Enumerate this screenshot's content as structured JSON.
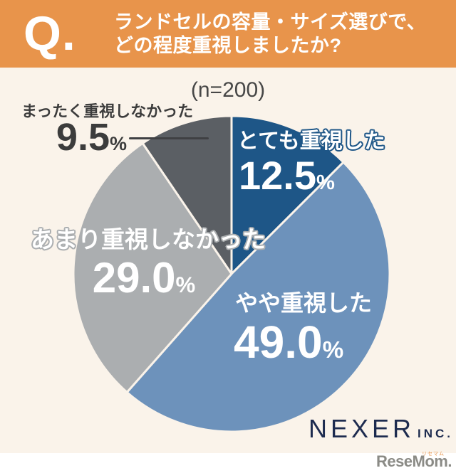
{
  "header": {
    "q_label": "Q.",
    "question_line1": "ランドセルの容量・サイズ選びで、",
    "question_line2": "どの程度重視しましたか?"
  },
  "chart_data": {
    "type": "pie",
    "title": "(n=200)",
    "unit": "%",
    "start_angle_deg": 0,
    "direction": "clockwise",
    "values_total": 100,
    "slices": [
      {
        "label": "とても重視した",
        "value": 12.5,
        "value_display": "12.5",
        "unit": "%",
        "color": "#1E5687",
        "text_color": "#FFFFFF"
      },
      {
        "label": "やや重視した",
        "value": 49.0,
        "value_display": "49.0",
        "unit": "%",
        "color": "#6D92BB",
        "text_color": "#FFFFFF"
      },
      {
        "label": "あまり重視しなかった",
        "value": 29.0,
        "value_display": "29.0",
        "unit": "%",
        "color": "#ABAEB0",
        "text_color": "#FFFFFF"
      },
      {
        "label": "まったく重視しなかった",
        "value": 9.5,
        "value_display": "9.5",
        "unit": "%",
        "color": "#5B5F64",
        "text_color": "#3C3C3C"
      }
    ]
  },
  "branding": {
    "company": "NEXER",
    "company_suffix": "INC.",
    "site_logo": "ReseMom",
    "site_logo_period": ".",
    "site_logo_ruby": "リセマム"
  },
  "colors": {
    "header_background": "#E8944B",
    "page_background": "#FAF3EA",
    "footer_background": "#FFFFFF",
    "title_text": "#474747",
    "dark_label_text": "#3C3C3C",
    "leader_line": "#3F4043",
    "nexer_navy": "#1D2B4F",
    "resemom_gray": "#8B8B86",
    "resemom_accent": "#E8944B"
  }
}
